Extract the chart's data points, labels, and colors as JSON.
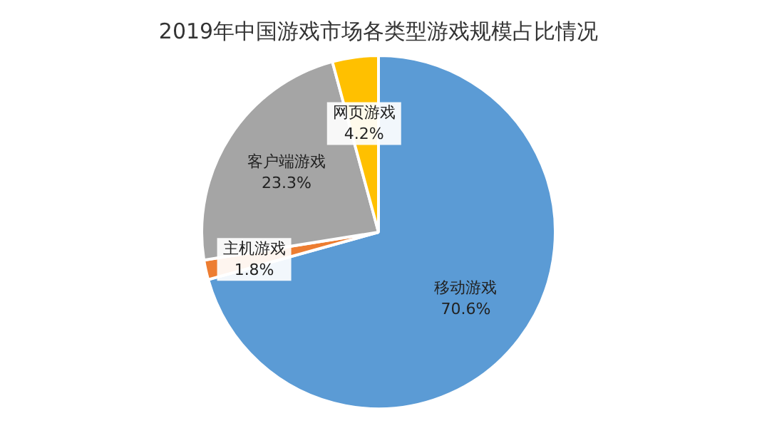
{
  "chart_data": {
    "type": "pie",
    "title": "2019年中国游戏市场各类型游戏规模占比情况",
    "categories": [
      "移动游戏",
      "主机游戏",
      "客户端游戏",
      "网页游戏"
    ],
    "values": [
      70.6,
      1.8,
      23.3,
      4.2
    ],
    "value_labels": [
      "70.6%",
      "1.8%",
      "23.3%",
      "4.2%"
    ],
    "colors": [
      "#5b9bd5",
      "#ed7d31",
      "#a5a5a5",
      "#ffc000"
    ],
    "legend": false
  }
}
